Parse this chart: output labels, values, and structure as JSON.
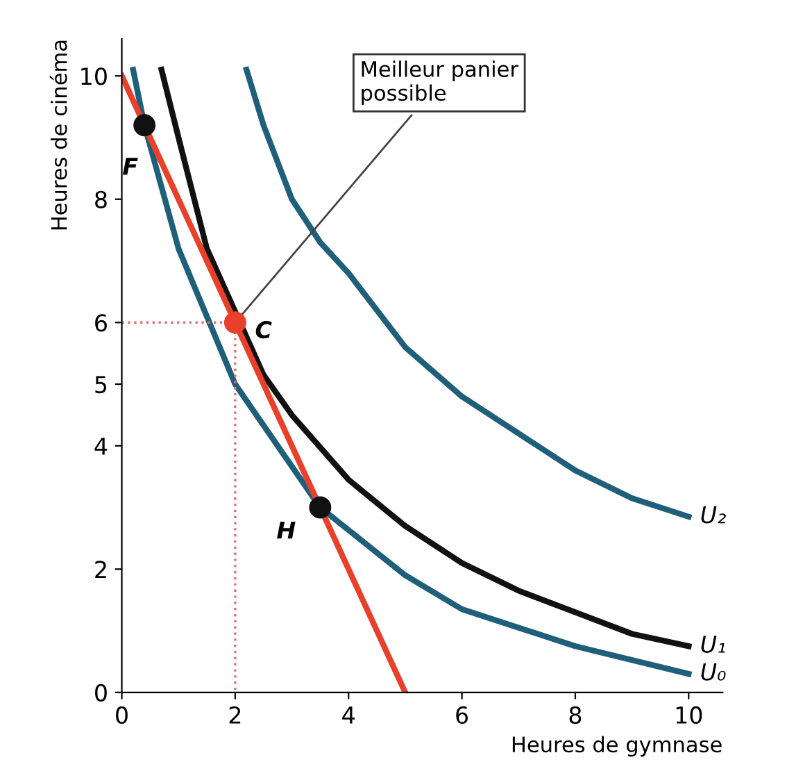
{
  "chart_data": {
    "type": "line",
    "xlabel": "Heures de gymnase",
    "ylabel": "Heures de cinéma",
    "xlim": [
      0,
      10.6
    ],
    "ylim": [
      0,
      10.6
    ],
    "xticks": [
      0,
      2,
      4,
      6,
      8,
      10
    ],
    "yticks": [
      0,
      2,
      4,
      5,
      6,
      8,
      10
    ],
    "grid": false,
    "legend": false,
    "line_style": "solid",
    "series": [
      {
        "name": "U₂",
        "color": "#1f5f7a",
        "x": [
          2.2,
          2.5,
          3,
          3.5,
          4,
          5,
          6,
          7,
          8,
          9,
          10
        ],
        "values": [
          10.1,
          9.2,
          8.0,
          7.3,
          6.8,
          5.6,
          4.8,
          4.2,
          3.6,
          3.15,
          2.85
        ]
      },
      {
        "name": "U₁",
        "color": "#111111",
        "x": [
          0.7,
          1,
          1.5,
          2.5,
          3,
          4,
          5,
          6,
          7,
          8,
          9,
          10
        ],
        "values": [
          10.1,
          9,
          7.2,
          5.15,
          4.5,
          3.45,
          2.7,
          2.1,
          1.65,
          1.3,
          0.95,
          0.75
        ]
      },
      {
        "name": "U₀",
        "color": "#1f5f7a",
        "x": [
          0.2,
          0.4,
          1,
          2,
          3.5,
          5,
          6,
          8,
          10
        ],
        "values": [
          10.1,
          9.2,
          7.2,
          5.0,
          3.0,
          1.9,
          1.35,
          0.75,
          0.3
        ]
      },
      {
        "color": "#e8402a",
        "x": [
          0,
          5
        ],
        "values": [
          10,
          0
        ]
      },
      {
        "color": "#e07070",
        "line_style": "dotted",
        "x": [
          0,
          2,
          2
        ],
        "values": [
          6,
          6,
          0
        ]
      },
      {
        "type": "scatter",
        "x": [
          0.4,
          2,
          3.5
        ],
        "values": [
          9.2,
          6,
          3.0
        ],
        "colors": [
          "#111111",
          "#e8402a",
          "#111111"
        ]
      }
    ],
    "annotations": [
      {
        "text": "Meilleur panier\npossible",
        "x": 2,
        "y": 6
      },
      {
        "text": "F",
        "x": 0.4,
        "y": 9.2
      },
      {
        "text": "C",
        "x": 2,
        "y": 6
      },
      {
        "text": "H",
        "x": 3.5,
        "y": 3.0
      }
    ]
  }
}
